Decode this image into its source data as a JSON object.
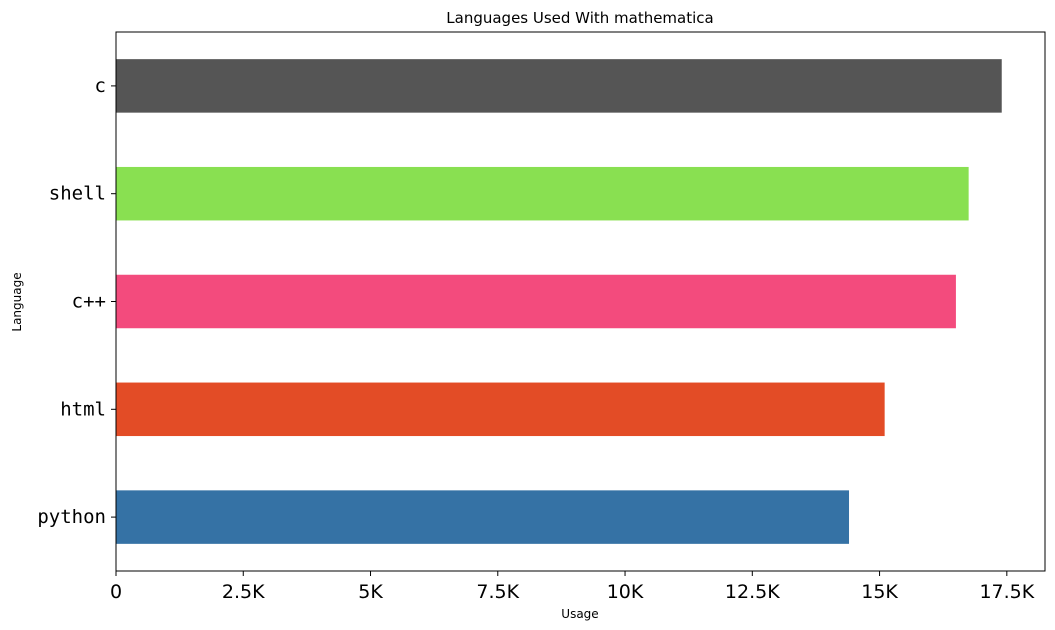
{
  "chart_data": {
    "type": "bar",
    "orientation": "horizontal",
    "title": "Languages Used With mathematica",
    "xlabel": "Usage",
    "ylabel": "Language",
    "categories": [
      "python",
      "html",
      "c++",
      "shell",
      "c"
    ],
    "values": [
      14400,
      15100,
      16500,
      16750,
      17400
    ],
    "colors": [
      "#3572a5",
      "#e34c26",
      "#f34b7d",
      "#89e051",
      "#555555"
    ],
    "xlim": [
      0,
      18250
    ],
    "xticks": [
      0,
      2500,
      5000,
      7500,
      10000,
      12500,
      15000,
      17500
    ],
    "xtick_labels": [
      "0",
      "2.5K",
      "5K",
      "7.5K",
      "10K",
      "12.5K",
      "15K",
      "17.5K"
    ],
    "grid": false,
    "legend": false
  }
}
